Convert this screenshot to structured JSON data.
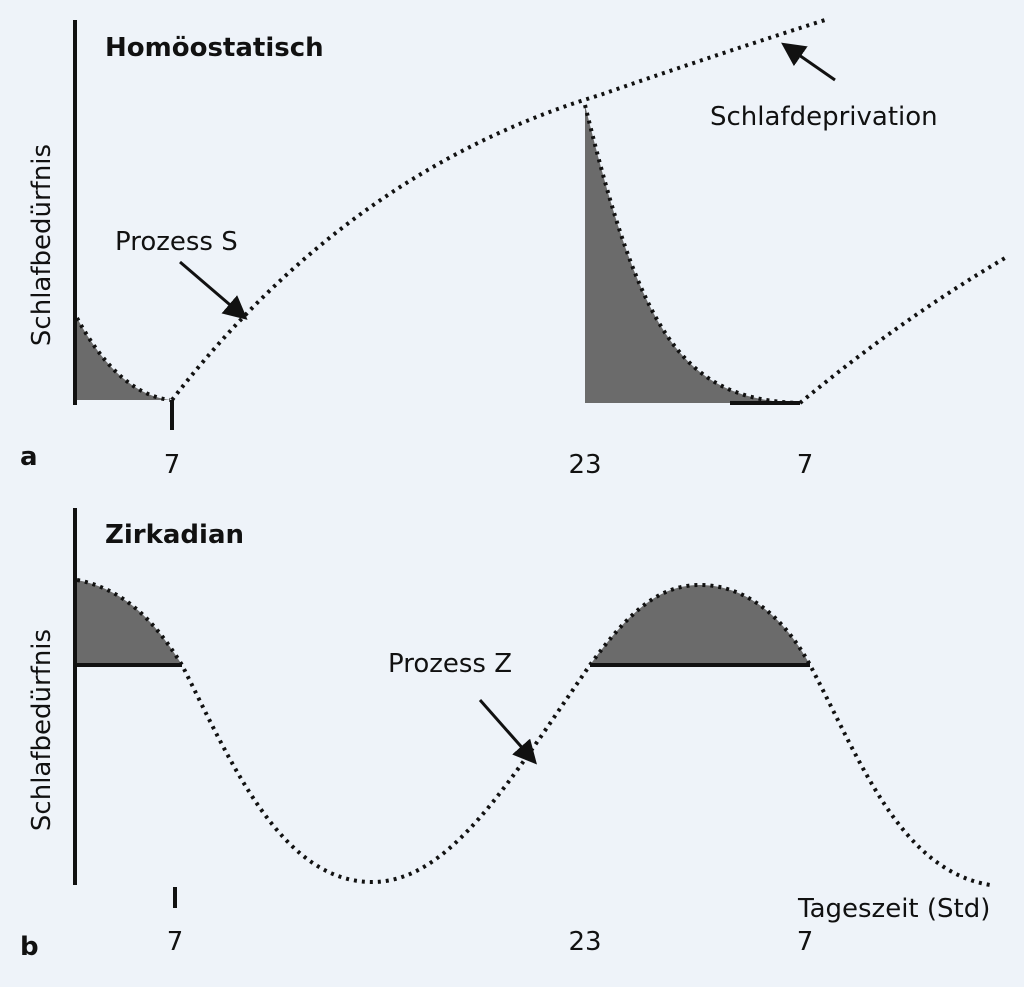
{
  "panels": [
    {
      "label": "a",
      "title": "Homöostatisch",
      "y_label": "Schlafbedürfnis",
      "x_ticks": [
        "7",
        "23",
        "7"
      ],
      "annotations": [
        "Prozess S",
        "Schlafdeprivation"
      ]
    },
    {
      "label": "b",
      "title": "Zirkadian",
      "y_label": "Schlafbedürfnis",
      "x_ticks": [
        "7",
        "23",
        "7"
      ],
      "annotations": [
        "Prozess Z"
      ],
      "x_label": "Tageszeit (Std)"
    }
  ]
}
